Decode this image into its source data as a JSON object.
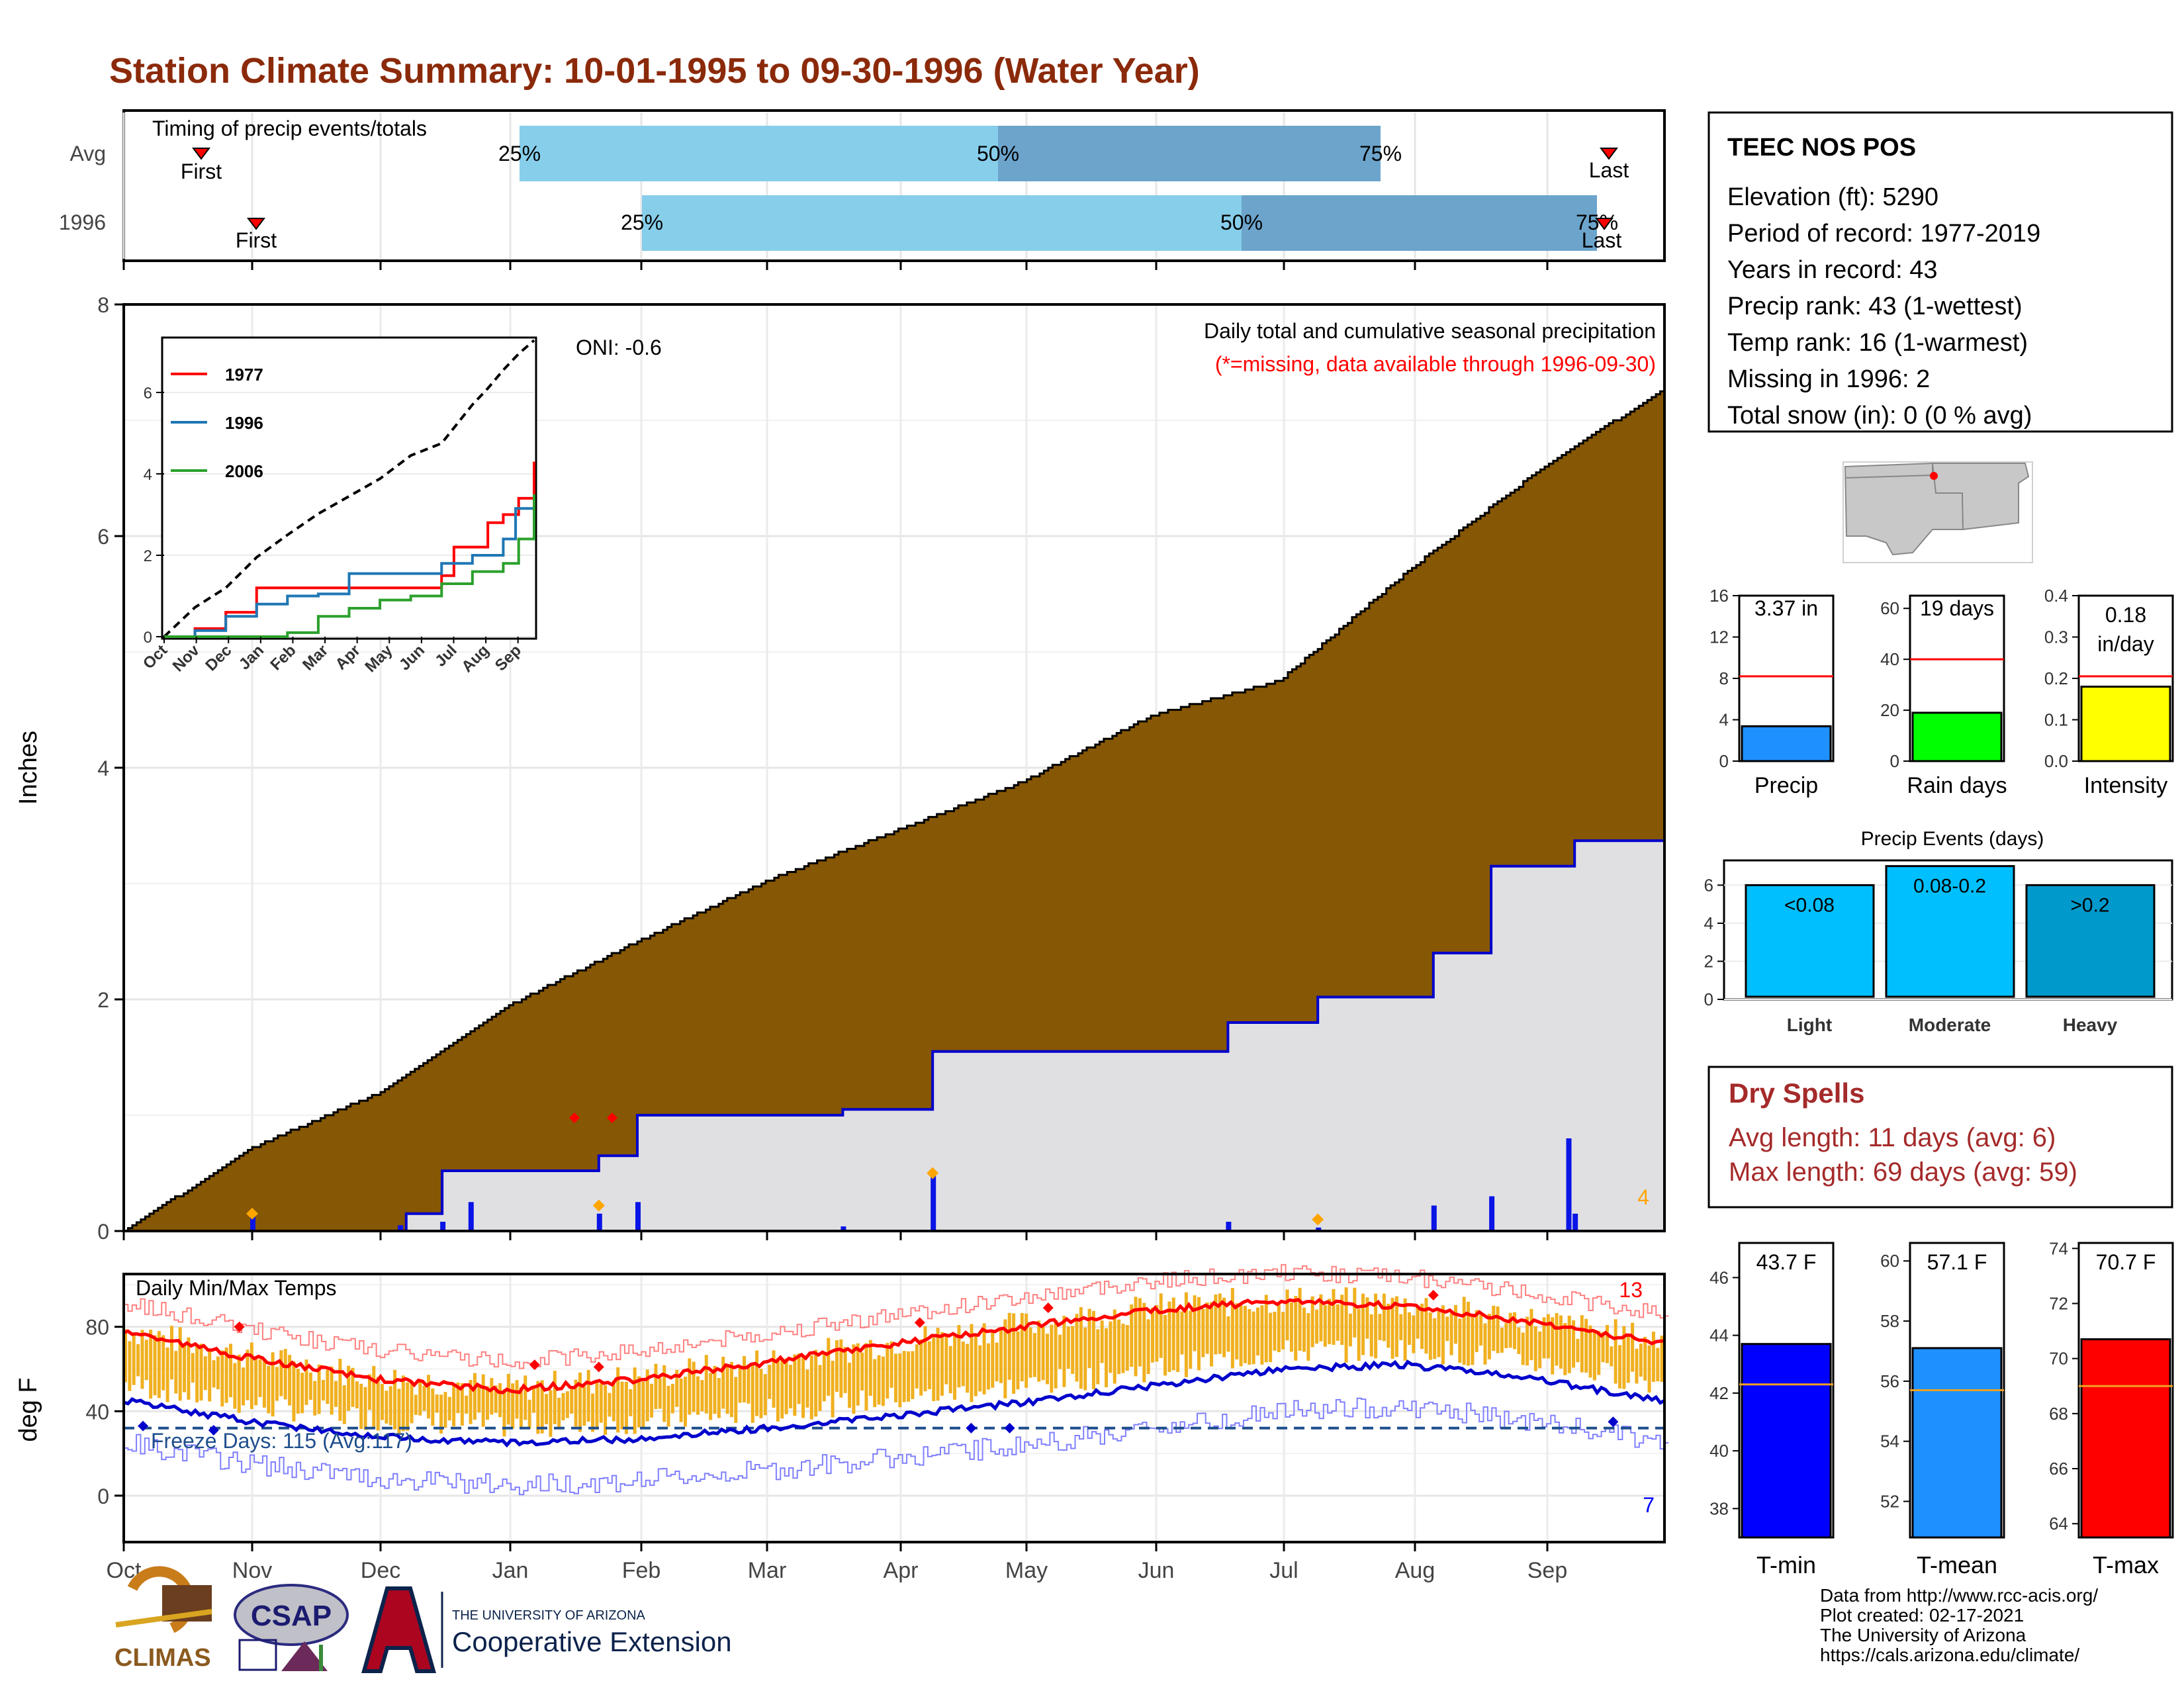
{
  "title": "Station Climate Summary: 10-01-1995 to 09-30-1996 (Water Year)",
  "colors": {
    "title": "#8b2a0a",
    "cumulative_avg": "#865704",
    "daily_bar": "#0a14e6",
    "light_blue": "#87ceeb",
    "mid_blue": "#6ca4cc",
    "missing": "#ff0000",
    "temp_bar": "#f0b020",
    "red": "#ff0000",
    "blue": "#0000ff",
    "rain_green": "#00ff00",
    "intensity_yellow": "#ffff00",
    "event_light": "#00bfff",
    "event_heavy": "#0099cc",
    "dry": "#a52a2a"
  },
  "timing": {
    "title": "Timing of precip events/totals",
    "rows": [
      {
        "label": "Avg",
        "first_label": "First",
        "last_label": "Last",
        "p25": "25%",
        "p50": "50%",
        "p75": "75%"
      },
      {
        "label": "1996",
        "first_label": "First",
        "last_label": "Last",
        "p25": "25%",
        "p50": "50%",
        "p75": "75%"
      }
    ]
  },
  "main": {
    "ylabel": "Inches",
    "oni": "ONI: -0.6",
    "note1": "Daily total and cumulative seasonal precipitation",
    "note2": "(*=missing, data available through 1996-09-30)",
    "corner_count": "4",
    "yticks": [
      "0",
      "2",
      "4",
      "6",
      "8"
    ]
  },
  "temp": {
    "title": "Daily Min/Max Temps",
    "ylabel": "deg F",
    "freeze": "Freeze Days: 115 (Avg:117)",
    "count_hot": "13",
    "count_cold": "7",
    "yticks": [
      "0",
      "40",
      "80"
    ]
  },
  "months": [
    "Oct",
    "Nov",
    "Dec",
    "Jan",
    "Feb",
    "Mar",
    "Apr",
    "May",
    "Jun",
    "Jul",
    "Aug",
    "Sep"
  ],
  "inset": {
    "legend": [
      "1977",
      "1996",
      "2006"
    ],
    "yticks": [
      "0",
      "2",
      "4",
      "6"
    ],
    "months": [
      "Oct",
      "Nov",
      "Dec",
      "Jan",
      "Feb",
      "Mar",
      "Apr",
      "May",
      "Jun",
      "Jul",
      "Aug",
      "Sep"
    ]
  },
  "station": {
    "name": "TEEC NOS POS",
    "lines": [
      "Elevation (ft): 5290",
      "Period of record: 1977-2019",
      "Years in record: 43",
      "Precip rank: 43 (1-wettest)",
      "Temp rank: 16 (1-warmest)",
      "Missing in 1996: 2",
      "Total snow (in): 0 (0 % avg)"
    ]
  },
  "summary_bars": [
    {
      "label": "Precip",
      "value_text": "3.37 in",
      "yticks": [
        "0",
        "4",
        "8",
        "12",
        "16"
      ]
    },
    {
      "label": "Rain days",
      "value_text": "19 days",
      "yticks": [
        "0",
        "20",
        "40",
        "60"
      ]
    },
    {
      "label": "Intensity",
      "value_text": "0.18",
      "value_text2": "in/day",
      "yticks": [
        "0.0",
        "0.1",
        "0.2",
        "0.3",
        "0.4"
      ]
    }
  ],
  "events": {
    "title": "Precip Events (days)",
    "categories": [
      "Light",
      "Moderate",
      "Heavy"
    ],
    "bar_labels": [
      "<0.08",
      "0.08-0.2",
      ">0.2"
    ],
    "yticks": [
      "0",
      "2",
      "4",
      "6"
    ]
  },
  "dry": {
    "title": "Dry Spells",
    "avg": "Avg length: 11 days (avg: 6)",
    "max": "Max length: 69 days (avg: 59)"
  },
  "temp_bars": [
    {
      "label": "T-min",
      "value_text": "43.7 F",
      "yticks": [
        "38",
        "40",
        "42",
        "44",
        "46"
      ]
    },
    {
      "label": "T-mean",
      "value_text": "57.1 F",
      "yticks": [
        "52",
        "54",
        "56",
        "58",
        "60"
      ]
    },
    {
      "label": "T-max",
      "value_text": "70.7 F",
      "yticks": [
        "64",
        "66",
        "68",
        "70",
        "72",
        "74"
      ]
    }
  ],
  "footer": {
    "lines": [
      "Data from http://www.rcc-acis.org/",
      "Plot created: 02-17-2021",
      "The University of Arizona",
      "https://cals.arizona.edu/climate/"
    ],
    "climas": "CLIMAS",
    "csap": "CSAP",
    "ua_small": "THE UNIVERSITY OF ARIZONA",
    "ua_big": "Cooperative Extension"
  },
  "chart_data": [
    {
      "type": "area",
      "name": "cumulative precipitation",
      "x_unit": "month index from Oct 1 (0-12)",
      "avg_cumulative": {
        "x": [
          0,
          1,
          2,
          3,
          4,
          5,
          6,
          7,
          8,
          9,
          10,
          11,
          12
        ],
        "y": [
          0,
          0.72,
          1.2,
          1.95,
          2.5,
          3.02,
          3.45,
          3.88,
          4.45,
          4.75,
          5.7,
          6.55,
          7.28
        ]
      },
      "series": [
        {
          "x": [
            0,
            1.0,
            2.2,
            2.2,
            2.48,
            2.48,
            3.7,
            3.7,
            4.0,
            4.0,
            5.6,
            5.6,
            6.3,
            6.3,
            8.6,
            8.6,
            9.3,
            9.3,
            10.2,
            10.2,
            10.65,
            10.65,
            11.3,
            11.3,
            12
          ],
          "y": [
            0,
            0,
            0,
            0.15,
            0.15,
            0.52,
            0.52,
            0.65,
            0.65,
            1.0,
            1.0,
            1.05,
            1.05,
            1.55,
            1.55,
            1.8,
            1.8,
            2.02,
            2.02,
            2.4,
            2.4,
            3.15,
            3.15,
            3.37,
            3.37
          ]
        }
      ],
      "daily_bars": {
        "x": [
          1.0,
          2.15,
          2.48,
          2.7,
          3.7,
          4.0,
          5.6,
          6.3,
          8.6,
          9.3,
          10.2,
          10.65,
          11.25,
          11.3
        ],
        "y": [
          0.15,
          0.05,
          0.08,
          0.25,
          0.15,
          0.25,
          0.04,
          0.48,
          0.08,
          0.03,
          0.22,
          0.3,
          0.8,
          0.15
        ]
      },
      "ylim": [
        0,
        8
      ]
    },
    {
      "type": "line",
      "name": "inset cumulative comparison",
      "series": [
        {
          "name": "1977",
          "x": [
            0,
            1,
            2,
            3,
            4,
            5,
            6,
            7,
            8,
            9,
            9.4,
            10,
            10.5,
            11,
            11.5,
            12
          ],
          "y": [
            0,
            0.2,
            0.6,
            1.2,
            1.2,
            1.2,
            1.2,
            1.2,
            1.2,
            1.5,
            2.2,
            2.2,
            2.8,
            3.0,
            3.4,
            4.3
          ]
        },
        {
          "name": "1996",
          "x": [
            0,
            1,
            2,
            3,
            4,
            5,
            6,
            7,
            8,
            9,
            10,
            11,
            11.4,
            12
          ],
          "y": [
            0,
            0.15,
            0.5,
            0.8,
            1.0,
            1.05,
            1.55,
            1.55,
            1.55,
            1.8,
            2.0,
            2.4,
            3.15,
            3.37
          ]
        },
        {
          "name": "2006",
          "x": [
            0,
            1,
            2,
            3,
            4,
            5,
            6,
            7,
            8,
            9,
            10,
            11,
            11.5,
            12
          ],
          "y": [
            0,
            0,
            0,
            0,
            0.1,
            0.5,
            0.7,
            0.9,
            1.0,
            1.3,
            1.6,
            1.8,
            2.4,
            3.5
          ]
        }
      ],
      "avg_dashed": {
        "x": [
          0,
          1,
          2,
          3,
          4,
          5,
          6,
          7,
          8,
          9,
          10,
          10.5,
          11,
          11.5,
          12
        ],
        "y": [
          0,
          0.72,
          1.2,
          1.95,
          2.5,
          3.02,
          3.45,
          3.88,
          4.45,
          4.75,
          5.7,
          6.1,
          6.55,
          6.95,
          7.28
        ]
      },
      "ylim": [
        0,
        7
      ]
    },
    {
      "type": "line",
      "name": "daily temperatures",
      "avg_max": {
        "x": [
          0,
          1,
          2,
          3,
          4,
          5,
          6,
          7,
          8,
          9,
          10,
          11,
          12
        ],
        "y": [
          78,
          65,
          55,
          50,
          55,
          63,
          72,
          80,
          88,
          92,
          90,
          82,
          72
        ]
      },
      "avg_min": {
        "x": [
          0,
          1,
          2,
          3,
          4,
          5,
          6,
          7,
          8,
          9,
          10,
          11,
          12
        ],
        "y": [
          45,
          35,
          28,
          25,
          27,
          32,
          38,
          44,
          52,
          60,
          62,
          55,
          45
        ]
      },
      "freeze_line": 32,
      "ylim": [
        -20,
        105
      ]
    },
    {
      "type": "bar",
      "name": "summary bars",
      "categories": [
        "Precip",
        "Rain days",
        "Intensity"
      ],
      "values": [
        3.37,
        19,
        0.18
      ],
      "avg": [
        8.2,
        40,
        0.205
      ],
      "ylims": [
        [
          0,
          16
        ],
        [
          0,
          65
        ],
        [
          0,
          0.4
        ]
      ]
    },
    {
      "type": "bar",
      "name": "Precip Events (days)",
      "categories": [
        "Light",
        "Moderate",
        "Heavy"
      ],
      "values": [
        6,
        7,
        6
      ],
      "ylim": [
        0,
        7
      ]
    },
    {
      "type": "bar",
      "name": "temperature summary",
      "categories": [
        "T-min",
        "T-mean",
        "T-max"
      ],
      "values": [
        43.7,
        57.1,
        70.7
      ],
      "avg": [
        42.3,
        55.7,
        69.0
      ],
      "ylims": [
        [
          37,
          47.2
        ],
        [
          50.8,
          60.6
        ],
        [
          63.5,
          74.2
        ]
      ]
    }
  ]
}
